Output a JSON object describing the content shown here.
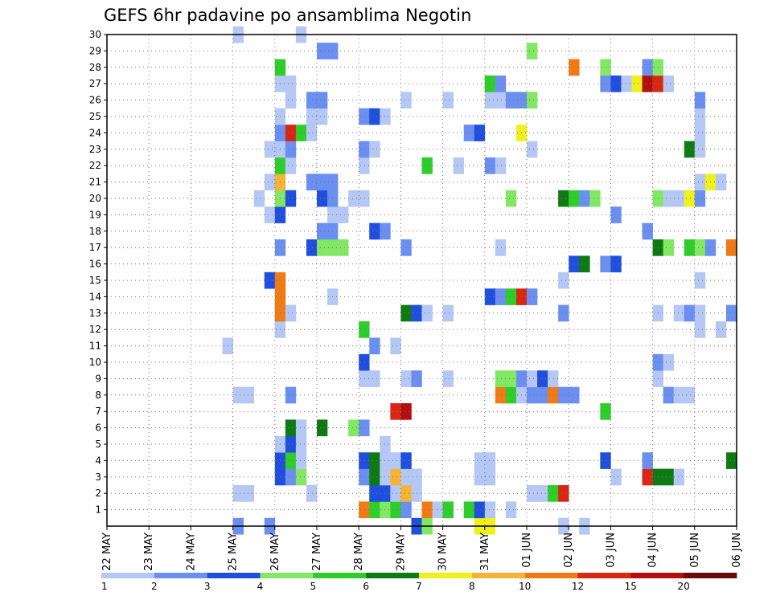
{
  "chart_data": {
    "type": "heatmap",
    "title": "GEFS 6hr padavine po ansamblima Negotin",
    "y_ticks": [
      "1",
      "2",
      "3",
      "4",
      "5",
      "6",
      "7",
      "8",
      "9",
      "10",
      "11",
      "12",
      "13",
      "14",
      "15",
      "16",
      "17",
      "18",
      "19",
      "20",
      "21",
      "22",
      "23",
      "24",
      "25",
      "26",
      "27",
      "28",
      "29",
      "30"
    ],
    "x_ticks": [
      "22 MAY",
      "23 MAY",
      "24 MAY",
      "25 MAY",
      "26 MAY",
      "27 MAY",
      "28 MAY",
      "29 MAY",
      "30 MAY",
      "31 MAY",
      "01 JUN",
      "02 JUN",
      "03 JUN",
      "04 JUN",
      "05 JUN",
      "06 JUN"
    ],
    "steps_per_day": 4,
    "color_levels": [
      "1",
      "2",
      "3",
      "4",
      "5",
      "6",
      "7",
      "8",
      "10",
      "12",
      "15",
      "20"
    ],
    "colors": [
      "#b4c7f5",
      "#6b8ff0",
      "#1f4fdc",
      "#82e864",
      "#2fcd2a",
      "#0e7a14",
      "#f0f01c",
      "#f5b436",
      "#f07a14",
      "#d82814",
      "#b40f0f",
      "#6b0a0a"
    ],
    "y_range": [
      0,
      30
    ],
    "grid": true,
    "cells": [
      [
        0,
        12,
        2
      ],
      [
        0,
        15,
        2
      ],
      [
        0,
        29,
        3
      ],
      [
        0,
        30,
        4
      ],
      [
        0,
        35,
        7
      ],
      [
        0,
        36,
        7
      ],
      [
        0,
        43,
        1
      ],
      [
        0,
        45,
        1
      ],
      [
        1,
        24,
        9
      ],
      [
        1,
        25,
        5
      ],
      [
        1,
        26,
        4
      ],
      [
        1,
        27,
        5
      ],
      [
        1,
        28,
        2
      ],
      [
        1,
        30,
        9
      ],
      [
        1,
        31,
        1
      ],
      [
        1,
        32,
        5
      ],
      [
        1,
        34,
        5
      ],
      [
        1,
        35,
        3
      ],
      [
        1,
        36,
        1
      ],
      [
        1,
        38,
        1
      ],
      [
        2,
        12,
        1
      ],
      [
        2,
        13,
        1
      ],
      [
        2,
        19,
        1
      ],
      [
        2,
        25,
        3
      ],
      [
        2,
        26,
        3
      ],
      [
        2,
        27,
        1
      ],
      [
        2,
        28,
        8
      ],
      [
        2,
        29,
        1
      ],
      [
        2,
        40,
        1
      ],
      [
        2,
        41,
        1
      ],
      [
        2,
        42,
        5
      ],
      [
        2,
        43,
        10
      ],
      [
        3,
        16,
        3
      ],
      [
        3,
        17,
        2
      ],
      [
        3,
        18,
        4
      ],
      [
        3,
        24,
        2
      ],
      [
        3,
        25,
        6
      ],
      [
        3,
        26,
        1
      ],
      [
        3,
        27,
        8
      ],
      [
        3,
        28,
        1
      ],
      [
        3,
        29,
        1
      ],
      [
        3,
        35,
        1
      ],
      [
        3,
        36,
        1
      ],
      [
        3,
        48,
        1
      ],
      [
        3,
        51,
        10
      ],
      [
        3,
        52,
        6
      ],
      [
        3,
        53,
        6
      ],
      [
        3,
        54,
        1
      ],
      [
        4,
        16,
        3
      ],
      [
        4,
        17,
        5
      ],
      [
        4,
        18,
        1
      ],
      [
        4,
        24,
        3
      ],
      [
        4,
        25,
        6
      ],
      [
        4,
        26,
        1
      ],
      [
        4,
        27,
        1
      ],
      [
        4,
        28,
        3
      ],
      [
        4,
        35,
        1
      ],
      [
        4,
        36,
        1
      ],
      [
        4,
        47,
        3
      ],
      [
        4,
        51,
        2
      ],
      [
        4,
        59,
        6
      ],
      [
        4,
        60,
        4
      ],
      [
        5,
        16,
        1
      ],
      [
        5,
        17,
        3
      ],
      [
        5,
        18,
        1
      ],
      [
        5,
        26,
        1
      ],
      [
        6,
        17,
        6
      ],
      [
        6,
        18,
        1
      ],
      [
        6,
        20,
        6
      ],
      [
        6,
        23,
        4
      ],
      [
        6,
        24,
        2
      ],
      [
        7,
        27,
        10
      ],
      [
        7,
        28,
        11
      ],
      [
        7,
        47,
        5
      ],
      [
        8,
        12,
        1
      ],
      [
        8,
        13,
        1
      ],
      [
        8,
        17,
        2
      ],
      [
        8,
        37,
        9
      ],
      [
        8,
        38,
        5
      ],
      [
        8,
        39,
        1
      ],
      [
        8,
        40,
        2
      ],
      [
        8,
        41,
        2
      ],
      [
        8,
        42,
        9
      ],
      [
        8,
        43,
        2
      ],
      [
        8,
        44,
        2
      ],
      [
        8,
        53,
        2
      ],
      [
        8,
        54,
        1
      ],
      [
        8,
        55,
        1
      ],
      [
        9,
        24,
        1
      ],
      [
        9,
        25,
        1
      ],
      [
        9,
        28,
        1
      ],
      [
        9,
        29,
        2
      ],
      [
        9,
        32,
        1
      ],
      [
        9,
        37,
        4
      ],
      [
        9,
        38,
        4
      ],
      [
        9,
        39,
        2
      ],
      [
        9,
        40,
        1
      ],
      [
        9,
        41,
        3
      ],
      [
        9,
        42,
        1
      ],
      [
        9,
        52,
        1
      ],
      [
        10,
        24,
        3
      ],
      [
        10,
        52,
        2
      ],
      [
        10,
        53,
        1
      ],
      [
        11,
        11,
        1
      ],
      [
        11,
        25,
        2
      ],
      [
        11,
        27,
        1
      ],
      [
        12,
        16,
        1
      ],
      [
        12,
        24,
        5
      ],
      [
        12,
        56,
        1
      ],
      [
        12,
        58,
        1
      ],
      [
        13,
        16,
        9
      ],
      [
        13,
        17,
        1
      ],
      [
        13,
        28,
        6
      ],
      [
        13,
        29,
        3
      ],
      [
        13,
        30,
        1
      ],
      [
        13,
        32,
        1
      ],
      [
        13,
        43,
        2
      ],
      [
        13,
        52,
        1
      ],
      [
        13,
        54,
        1
      ],
      [
        13,
        55,
        2
      ],
      [
        13,
        56,
        1
      ],
      [
        13,
        59,
        2
      ],
      [
        13,
        60,
        6
      ],
      [
        14,
        16,
        9
      ],
      [
        14,
        21,
        1
      ],
      [
        14,
        36,
        3
      ],
      [
        14,
        37,
        2
      ],
      [
        14,
        38,
        5
      ],
      [
        14,
        39,
        10
      ],
      [
        14,
        40,
        2
      ],
      [
        15,
        15,
        3
      ],
      [
        15,
        16,
        9
      ],
      [
        15,
        43,
        1
      ],
      [
        15,
        56,
        1
      ],
      [
        15,
        60,
        6
      ],
      [
        16,
        44,
        3
      ],
      [
        16,
        45,
        6
      ],
      [
        16,
        47,
        2
      ],
      [
        16,
        48,
        3
      ],
      [
        17,
        16,
        2
      ],
      [
        17,
        19,
        3
      ],
      [
        17,
        20,
        4
      ],
      [
        17,
        21,
        4
      ],
      [
        17,
        22,
        4
      ],
      [
        17,
        28,
        2
      ],
      [
        17,
        37,
        1
      ],
      [
        17,
        52,
        6
      ],
      [
        17,
        53,
        4
      ],
      [
        17,
        55,
        5
      ],
      [
        17,
        56,
        4
      ],
      [
        17,
        57,
        2
      ],
      [
        17,
        59,
        9
      ],
      [
        17,
        60,
        8
      ],
      [
        18,
        20,
        2
      ],
      [
        18,
        21,
        2
      ],
      [
        18,
        25,
        3
      ],
      [
        18,
        26,
        2
      ],
      [
        18,
        51,
        2
      ],
      [
        19,
        15,
        1
      ],
      [
        19,
        16,
        3
      ],
      [
        19,
        21,
        1
      ],
      [
        19,
        22,
        1
      ],
      [
        19,
        48,
        2
      ],
      [
        20,
        14,
        1
      ],
      [
        20,
        16,
        4
      ],
      [
        20,
        17,
        3
      ],
      [
        20,
        20,
        3
      ],
      [
        20,
        21,
        2
      ],
      [
        20,
        23,
        1
      ],
      [
        20,
        24,
        1
      ],
      [
        20,
        38,
        4
      ],
      [
        20,
        43,
        6
      ],
      [
        20,
        44,
        5
      ],
      [
        20,
        45,
        2
      ],
      [
        20,
        46,
        4
      ],
      [
        20,
        52,
        4
      ],
      [
        20,
        53,
        1
      ],
      [
        20,
        54,
        1
      ],
      [
        20,
        55,
        7
      ],
      [
        20,
        56,
        2
      ],
      [
        21,
        15,
        1
      ],
      [
        21,
        16,
        8
      ],
      [
        21,
        19,
        2
      ],
      [
        21,
        20,
        2
      ],
      [
        21,
        21,
        2
      ],
      [
        21,
        56,
        1
      ],
      [
        21,
        57,
        7
      ],
      [
        21,
        58,
        1
      ],
      [
        22,
        16,
        5
      ],
      [
        22,
        17,
        1
      ],
      [
        22,
        24,
        1
      ],
      [
        22,
        30,
        5
      ],
      [
        22,
        33,
        1
      ],
      [
        22,
        36,
        2
      ],
      [
        22,
        37,
        1
      ],
      [
        23,
        15,
        1
      ],
      [
        23,
        16,
        1
      ],
      [
        23,
        17,
        2
      ],
      [
        23,
        24,
        2
      ],
      [
        23,
        25,
        1
      ],
      [
        23,
        40,
        1
      ],
      [
        23,
        55,
        6
      ],
      [
        23,
        56,
        1
      ],
      [
        24,
        16,
        2
      ],
      [
        24,
        17,
        10
      ],
      [
        24,
        18,
        5
      ],
      [
        24,
        19,
        1
      ],
      [
        24,
        34,
        2
      ],
      [
        24,
        35,
        3
      ],
      [
        24,
        39,
        7
      ],
      [
        24,
        56,
        1
      ],
      [
        25,
        16,
        1
      ],
      [
        25,
        19,
        1
      ],
      [
        25,
        20,
        1
      ],
      [
        25,
        24,
        2
      ],
      [
        25,
        25,
        3
      ],
      [
        25,
        26,
        1
      ],
      [
        25,
        56,
        1
      ],
      [
        26,
        17,
        1
      ],
      [
        26,
        19,
        2
      ],
      [
        26,
        20,
        2
      ],
      [
        26,
        28,
        1
      ],
      [
        26,
        32,
        1
      ],
      [
        26,
        36,
        1
      ],
      [
        26,
        37,
        1
      ],
      [
        26,
        38,
        2
      ],
      [
        26,
        39,
        2
      ],
      [
        26,
        40,
        4
      ],
      [
        26,
        56,
        2
      ],
      [
        27,
        16,
        1
      ],
      [
        27,
        17,
        1
      ],
      [
        27,
        36,
        5
      ],
      [
        27,
        37,
        2
      ],
      [
        27,
        47,
        2
      ],
      [
        27,
        48,
        3
      ],
      [
        27,
        49,
        1
      ],
      [
        27,
        50,
        7
      ],
      [
        27,
        51,
        11
      ],
      [
        27,
        52,
        10
      ],
      [
        27,
        53,
        1
      ],
      [
        28,
        16,
        5
      ],
      [
        28,
        44,
        9
      ],
      [
        28,
        47,
        4
      ],
      [
        28,
        51,
        2
      ],
      [
        28,
        52,
        4
      ],
      [
        29,
        20,
        2
      ],
      [
        29,
        21,
        2
      ],
      [
        29,
        40,
        4
      ],
      [
        30,
        12,
        1
      ],
      [
        30,
        18,
        1
      ]
    ]
  },
  "colorbar": {
    "colors": [
      "#b4c7f5",
      "#6b8ff0",
      "#1f4fdc",
      "#82e864",
      "#2fcd2a",
      "#0e7a14",
      "#f0f01c",
      "#f5b436",
      "#f07a14",
      "#d82814",
      "#b40f0f",
      "#6b0a0a"
    ],
    "labels": [
      "1",
      "2",
      "3",
      "4",
      "5",
      "6",
      "7",
      "8",
      "10",
      "12",
      "15",
      "20"
    ]
  }
}
